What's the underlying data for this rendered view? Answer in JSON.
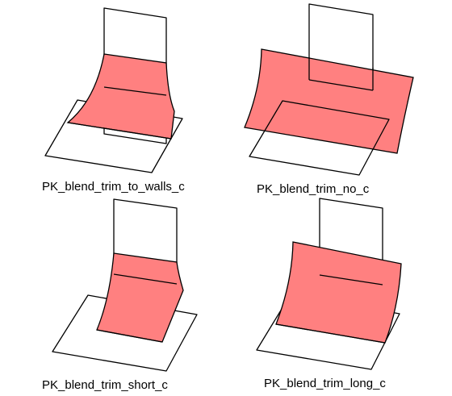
{
  "colors": {
    "blend_fill": "#ff8080",
    "line": "#000000",
    "background": "#ffffff"
  },
  "figures": [
    {
      "id": "trim-to-walls",
      "caption": "PK_blend_trim_to_walls_c"
    },
    {
      "id": "trim-no",
      "caption": "PK_blend_trim_no_c"
    },
    {
      "id": "trim-short",
      "caption": "PK_blend_trim_short_c"
    },
    {
      "id": "trim-long",
      "caption": "PK_blend_trim_long_c"
    }
  ]
}
